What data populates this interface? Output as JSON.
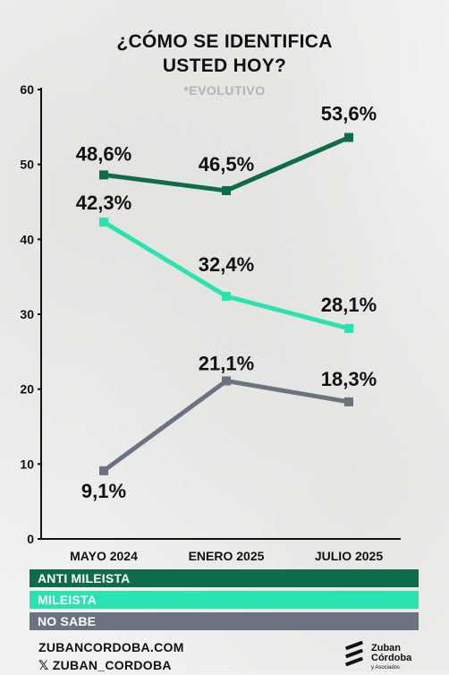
{
  "title_line1": "¿CÓMO SE IDENTIFICA",
  "title_line2": "USTED HOY?",
  "subtitle": "*EVOLUTIVO",
  "chart_data": {
    "type": "line",
    "categories": [
      "MAYO 2024",
      "ENERO 2025",
      "JULIO 2025"
    ],
    "ylim": [
      0,
      60
    ],
    "yticks": [
      "0",
      "10",
      "20",
      "30",
      "40",
      "50",
      "60"
    ],
    "grid": false,
    "series": [
      {
        "name": "ANTI MILEISTA",
        "color": "#0e6b4c",
        "values": [
          48.6,
          46.5,
          53.6
        ],
        "labels": [
          "48,6%",
          "46,5%",
          "53,6%"
        ]
      },
      {
        "name": "MILEISTA",
        "color": "#2be3b0",
        "values": [
          42.3,
          32.4,
          28.1
        ],
        "labels": [
          "42,3%",
          "32,4%",
          "28,1%"
        ]
      },
      {
        "name": "NO SABE",
        "color": "#6b7382",
        "values": [
          9.1,
          21.1,
          18.3
        ],
        "labels": [
          "9,1%",
          "21,1%",
          "18,3%"
        ]
      }
    ]
  },
  "legend": [
    "ANTI MILEISTA",
    "MILEISTA",
    "NO SABE"
  ],
  "footer": {
    "website": "ZUBANCORDOBA.COM",
    "social": "𝕏 ZUBAN_CORDOBA"
  },
  "logo": {
    "line1": "Zuban",
    "line2": "Córdoba",
    "line3": "y Asociados"
  }
}
